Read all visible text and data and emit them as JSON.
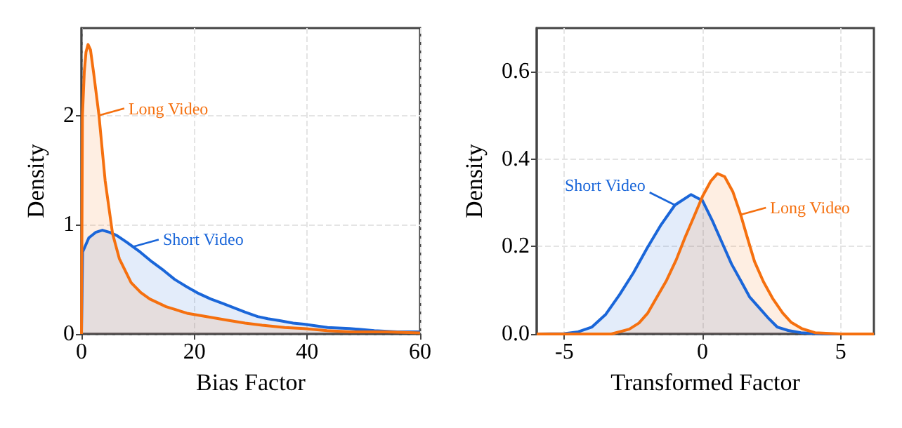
{
  "chart_data": [
    {
      "type": "area",
      "xlabel": "Bias Factor",
      "ylabel": "Density",
      "xlim": [
        0,
        60
      ],
      "ylim": [
        0,
        2.8
      ],
      "xticks": [
        0,
        20,
        40,
        60
      ],
      "yticks": [
        0,
        1,
        2
      ],
      "grid": true,
      "marker": "none",
      "series": [
        {
          "color": "#1a66d9",
          "x": [
            0,
            0.2,
            1.3,
            2.5,
            3.7,
            5,
            6.3,
            8,
            10.4,
            12.5,
            14.6,
            16.5,
            18.7,
            20.8,
            22.9,
            25,
            27,
            29,
            31.2,
            33,
            35.3,
            37.5,
            39.4,
            43.6,
            47.5,
            51.9,
            56,
            60
          ],
          "values": [
            0,
            0.75,
            0.88,
            0.93,
            0.95,
            0.93,
            0.9,
            0.84,
            0.75,
            0.66,
            0.58,
            0.5,
            0.43,
            0.37,
            0.32,
            0.28,
            0.24,
            0.2,
            0.16,
            0.14,
            0.12,
            0.1,
            0.09,
            0.06,
            0.05,
            0.03,
            0.02,
            0.02
          ]
        },
        {
          "color": "#f5700f",
          "x": [
            0,
            0.17,
            0.5,
            0.8,
            1.16,
            1.6,
            2.15,
            3.1,
            4.2,
            5.5,
            6.7,
            8.8,
            10.5,
            12.1,
            15,
            18.7,
            22,
            25.4,
            29,
            32,
            36,
            39.4,
            43.5,
            47.7,
            54,
            60
          ],
          "values": [
            0,
            2.0,
            2.4,
            2.58,
            2.65,
            2.6,
            2.39,
            2.0,
            1.4,
            0.92,
            0.69,
            0.47,
            0.38,
            0.32,
            0.25,
            0.19,
            0.16,
            0.13,
            0.1,
            0.08,
            0.06,
            0.05,
            0.03,
            0.02,
            0.02,
            0.01
          ]
        }
      ],
      "annotations": [
        {
          "text": "Long Video",
          "x": 3.1,
          "y": 2.0
        },
        {
          "text": "Short Video",
          "x": 9.2,
          "y": 0.8
        }
      ]
    },
    {
      "type": "area",
      "xlabel": "Transformed Factor",
      "ylabel": "Density",
      "xlim": [
        -6,
        6.2
      ],
      "ylim": [
        0,
        0.7
      ],
      "xticks": [
        -5,
        0,
        5
      ],
      "yticks": [
        {
          "value": 0,
          "label": "0.0"
        },
        0.2,
        0.4,
        0.6
      ],
      "grid": true,
      "marker": "none",
      "series": [
        {
          "color": "#1a66d9",
          "x": [
            -6,
            -5,
            -4.5,
            -4,
            -3.5,
            -3,
            -2.5,
            -2,
            -1.5,
            -1,
            -0.42,
            0,
            0.35,
            0.7,
            1.05,
            1.4,
            1.7,
            2.05,
            2.4,
            2.7,
            3.1,
            3.56,
            4.5,
            6.2
          ],
          "values": [
            0,
            0.001,
            0.005,
            0.016,
            0.045,
            0.09,
            0.14,
            0.197,
            0.25,
            0.295,
            0.319,
            0.305,
            0.26,
            0.21,
            0.16,
            0.12,
            0.085,
            0.06,
            0.035,
            0.016,
            0.008,
            0.003,
            0,
            0
          ]
        },
        {
          "color": "#f5700f",
          "x": [
            -6,
            -3.3,
            -2.65,
            -2.3,
            -1.98,
            -1.6,
            -1.3,
            -0.95,
            -0.64,
            -0.3,
            0,
            0.3,
            0.54,
            0.8,
            1.1,
            1.38,
            1.6,
            1.88,
            2.2,
            2.55,
            2.9,
            3.2,
            3.6,
            4.07,
            5,
            6.2
          ],
          "values": [
            0,
            0,
            0.011,
            0.025,
            0.048,
            0.09,
            0.123,
            0.17,
            0.22,
            0.27,
            0.315,
            0.35,
            0.367,
            0.36,
            0.325,
            0.273,
            0.225,
            0.166,
            0.12,
            0.08,
            0.048,
            0.027,
            0.012,
            0.003,
            0,
            0
          ]
        }
      ],
      "annotations": [
        {
          "text": "Short Video",
          "x": -1,
          "y": 0.295
        },
        {
          "text": "Long Video",
          "x": 1.38,
          "y": 0.273
        }
      ]
    }
  ]
}
